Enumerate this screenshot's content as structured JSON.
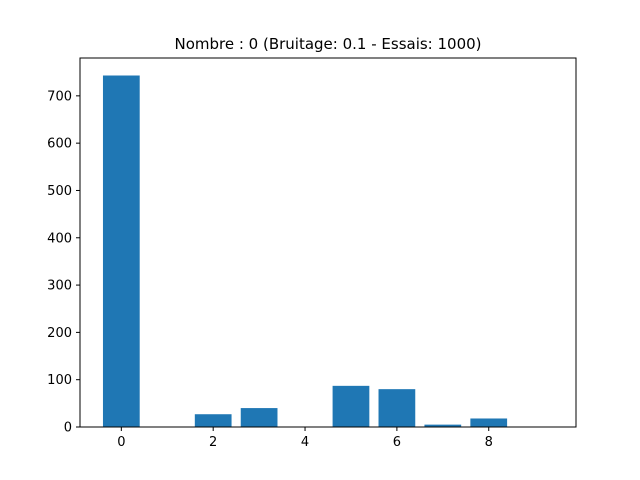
{
  "chart_data": {
    "type": "bar",
    "title": "Nombre : 0 (Bruitage: 0.1 - Essais: 1000)",
    "xlabel": "",
    "ylabel": "",
    "categories": [
      0,
      1,
      2,
      3,
      4,
      5,
      6,
      7,
      8,
      9
    ],
    "values": [
      743,
      0,
      27,
      40,
      0,
      87,
      80,
      5,
      18,
      0
    ],
    "xlim": [
      -0.9,
      9.9
    ],
    "ylim": [
      0,
      780
    ],
    "xticks": [
      0,
      2,
      4,
      6,
      8
    ],
    "yticks": [
      0,
      100,
      200,
      300,
      400,
      500,
      600,
      700
    ],
    "grid": false,
    "legend": "none",
    "bar_color": "#1f77b4"
  }
}
